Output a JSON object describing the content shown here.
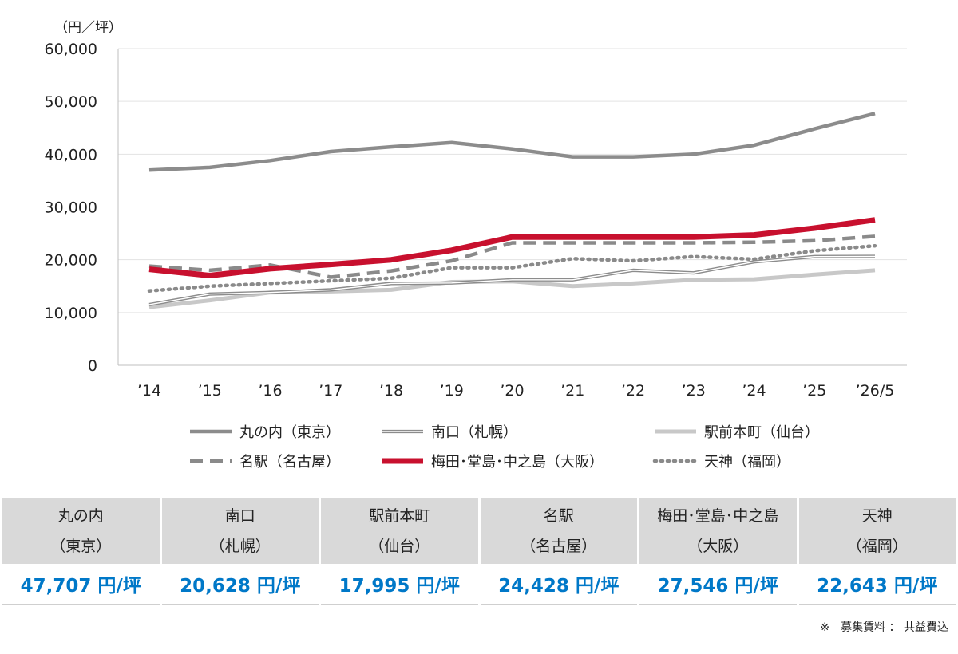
{
  "chart_data": {
    "type": "line",
    "unit_label": "（円／坪）",
    "categories": [
      "’14",
      "’15",
      "’16",
      "’17",
      "’18",
      "’19",
      "’20",
      "’21",
      "’22",
      "’23",
      "’24",
      "’25",
      "’26/5"
    ],
    "ylim": [
      0,
      60000
    ],
    "yticks": [
      0,
      10000,
      20000,
      30000,
      40000,
      50000,
      60000
    ],
    "ytick_labels": [
      "0",
      "10,000",
      "20,000",
      "30,000",
      "40,000",
      "50,000",
      "60,000"
    ],
    "grid": true,
    "legend_position": "bottom",
    "series": [
      {
        "name": "丸の内（東京）",
        "style": "solid-thick",
        "color": "#888888",
        "values": [
          37000,
          37500,
          38800,
          40500,
          41400,
          42200,
          41000,
          39500,
          39500,
          40000,
          41700,
          44800,
          47707
        ]
      },
      {
        "name": "南口（札幌）",
        "style": "double",
        "color": "#888888",
        "values": [
          11500,
          13500,
          13800,
          14300,
          15500,
          15600,
          16200,
          16200,
          18000,
          17500,
          19600,
          20600,
          20628
        ]
      },
      {
        "name": "駅前本町（仙台）",
        "style": "solid-light",
        "color": "#c8c8c8",
        "values": [
          11000,
          12300,
          13800,
          14000,
          14300,
          15800,
          15900,
          15000,
          15500,
          16200,
          16300,
          17200,
          17995
        ]
      },
      {
        "name": "名駅（名古屋）",
        "style": "dashed",
        "color": "#888888",
        "values": [
          18800,
          18000,
          19000,
          16700,
          17900,
          19800,
          23200,
          23200,
          23200,
          23200,
          23300,
          23600,
          24428
        ]
      },
      {
        "name": "梅田･堂島･中之島（大阪）",
        "style": "solid-red",
        "color": "#c8102e",
        "values": [
          18200,
          17000,
          18300,
          19100,
          20000,
          21800,
          24300,
          24300,
          24300,
          24300,
          24700,
          26000,
          27546
        ]
      },
      {
        "name": "天神（福岡）",
        "style": "dotted",
        "color": "#888888",
        "values": [
          14100,
          15000,
          15500,
          16000,
          16500,
          18500,
          18500,
          20200,
          19800,
          20600,
          20100,
          21700,
          22643
        ]
      }
    ]
  },
  "table": {
    "headers": [
      {
        "line1": "丸の内",
        "line2": "（東京）"
      },
      {
        "line1": "南口",
        "line2": "（札幌）"
      },
      {
        "line1": "駅前本町",
        "line2": "（仙台）"
      },
      {
        "line1": "名駅",
        "line2": "（名古屋）"
      },
      {
        "line1": "梅田･堂島･中之島",
        "line2": "（大阪）"
      },
      {
        "line1": "天神",
        "line2": "（福岡）"
      }
    ],
    "values": [
      "47,707 円/坪",
      "20,628 円/坪",
      "17,995 円/坪",
      "24,428 円/坪",
      "27,546 円/坪",
      "22,643 円/坪"
    ]
  },
  "footnote": "※　募集賃料 ： 共益費込"
}
